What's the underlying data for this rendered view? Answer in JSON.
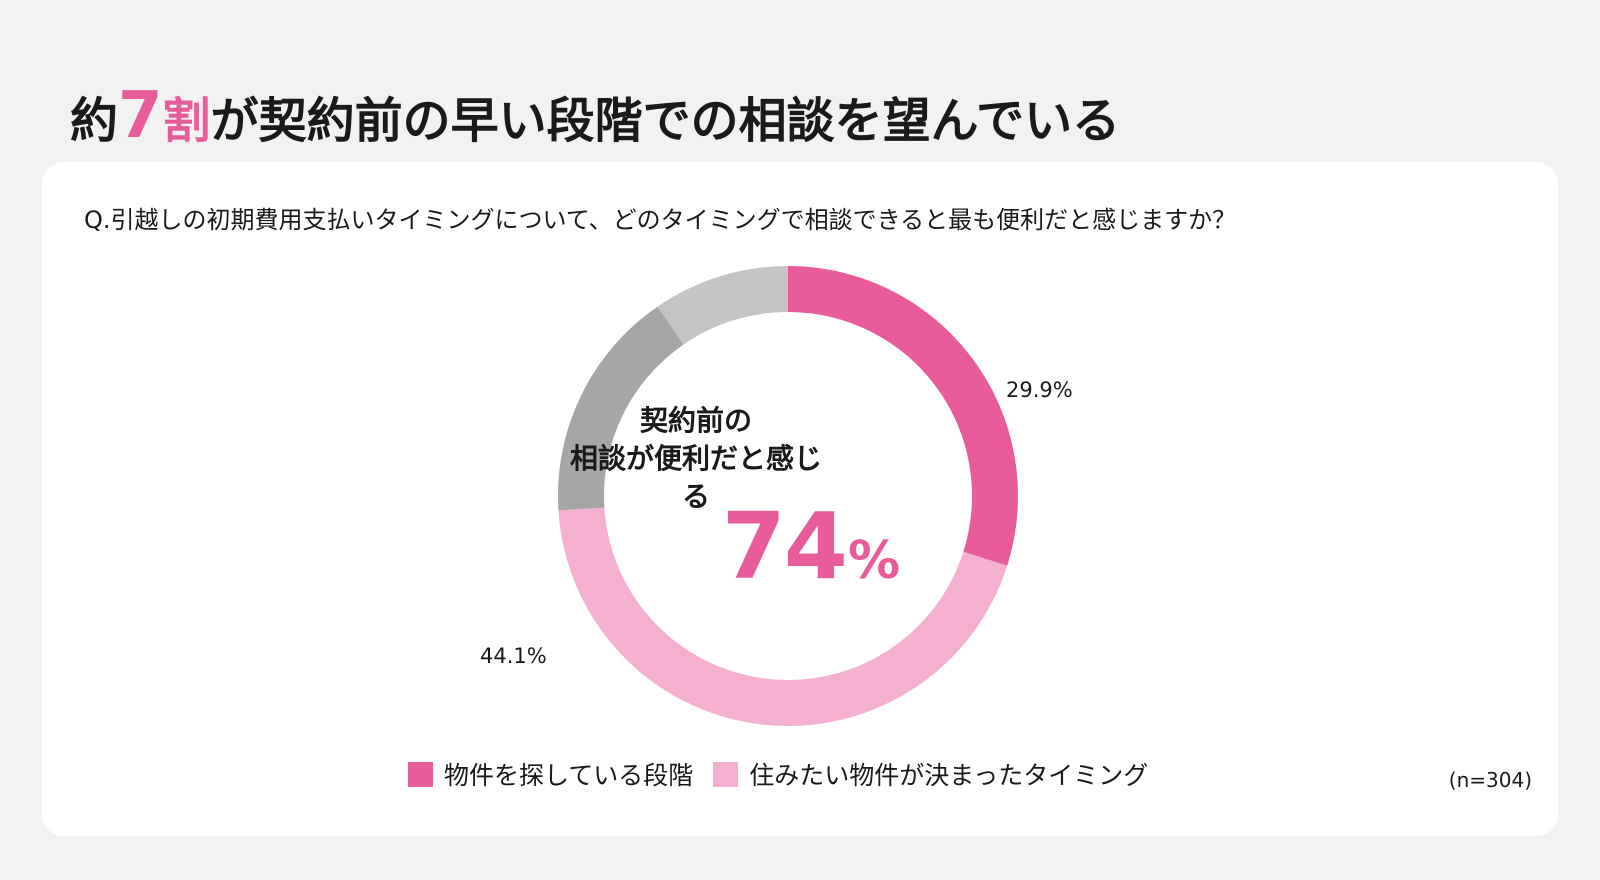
{
  "headline": {
    "prefix": "約",
    "accent_number": "7",
    "accent_unit": "割",
    "suffix": "が契約前の早い段階での相談を望んでいる"
  },
  "question": "Q.引越しの初期費用支払いタイミングについて、どのタイミングで相談できると最も便利だと感じますか？",
  "center": {
    "line1": "契約前の",
    "line2": "相談が便利だと感じる",
    "value": "74",
    "unit": "%"
  },
  "sample_size": "(n=304)",
  "chart_data": {
    "type": "pie",
    "variant": "donut",
    "slices": [
      {
        "name": "物件を探している段階",
        "value": 29.9,
        "label": "29.9%",
        "color": "#e95c9c",
        "in_legend": true
      },
      {
        "name": "住みたい物件が決まったタイミング",
        "value": 44.1,
        "label": "44.1%",
        "color": "#f5afcf",
        "in_legend": true
      },
      {
        "name": "",
        "value": 16.4,
        "label": "",
        "color": "#a6a6a6",
        "in_legend": false
      },
      {
        "name": "",
        "value": 9.6,
        "label": "",
        "color": "#c4c4c4",
        "in_legend": false
      }
    ],
    "start_angle": "12 o'clock",
    "direction": "clockwise",
    "legend_position": "bottom"
  },
  "colors": {
    "accent": "#e95c9c",
    "background": "#f2f2f2",
    "card": "#ffffff"
  }
}
